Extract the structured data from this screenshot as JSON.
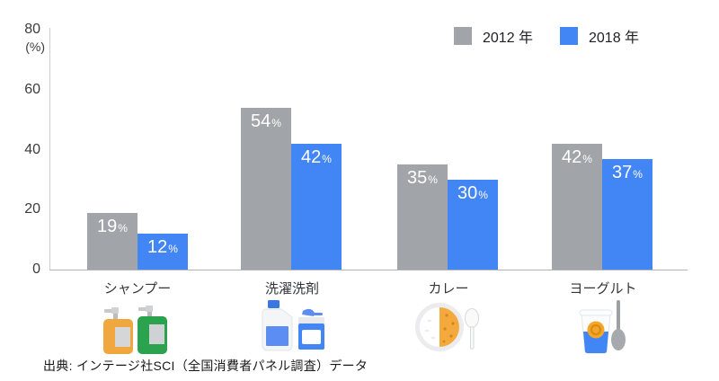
{
  "chart_data": {
    "type": "bar",
    "title": "",
    "unit_label": "(%)",
    "ylim": [
      0,
      80
    ],
    "yticks": [
      80,
      60,
      40,
      20,
      0
    ],
    "grid": false,
    "legend_position": "top-right",
    "categories": [
      "シャンプー",
      "洗濯洗剤",
      "カレー",
      "ヨーグルト"
    ],
    "series": [
      {
        "name": "2012 年",
        "color": "#a1a4a8",
        "values": [
          19,
          54,
          35,
          42
        ]
      },
      {
        "name": "2018 年",
        "color": "#4285f4",
        "values": [
          12,
          42,
          30,
          37
        ]
      }
    ],
    "value_suffix": "%"
  },
  "category_icons": [
    "shampoo-bottles-icon",
    "laundry-detergent-icon",
    "curry-plate-icon",
    "yogurt-cup-icon"
  ],
  "source_note": "出典: インテージ社SCI（全国消費者パネル調査）データ",
  "colors": {
    "background": "#ffffff",
    "axis_line": "#cbcdd0",
    "baseline": "#b2b4b7",
    "tick_text": "#3a3b3d",
    "category_text": "#333538",
    "bar_label_text": "#ffffff",
    "series_2012": "#a1a4a8",
    "series_2018": "#4285f4"
  }
}
